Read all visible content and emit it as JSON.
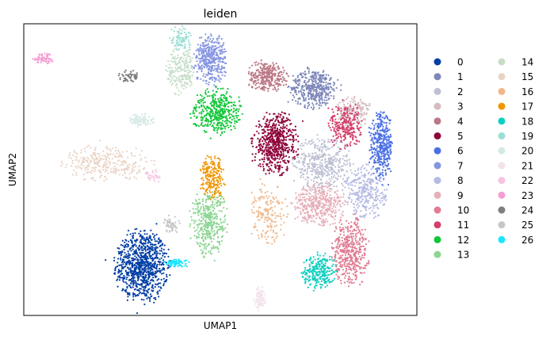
{
  "chart_data": {
    "type": "scatter",
    "title": "leiden",
    "xlabel": "UMAP1",
    "ylabel": "UMAP2",
    "xlim": [
      0,
      100
    ],
    "ylim": [
      0,
      100
    ],
    "grid": false,
    "ticks": false,
    "legend_position": "right",
    "legend": [
      {
        "label": "0",
        "color": "#023fa5"
      },
      {
        "label": "1",
        "color": "#7d87b9"
      },
      {
        "label": "2",
        "color": "#bec1d4"
      },
      {
        "label": "3",
        "color": "#d6bcc0"
      },
      {
        "label": "4",
        "color": "#bb7784"
      },
      {
        "label": "5",
        "color": "#8e063b"
      },
      {
        "label": "6",
        "color": "#4a6fe3"
      },
      {
        "label": "7",
        "color": "#8595e1"
      },
      {
        "label": "8",
        "color": "#b5bbe3"
      },
      {
        "label": "9",
        "color": "#e6afb9"
      },
      {
        "label": "10",
        "color": "#e07b91"
      },
      {
        "label": "11",
        "color": "#d33f6a"
      },
      {
        "label": "12",
        "color": "#11c638"
      },
      {
        "label": "13",
        "color": "#8dd593"
      },
      {
        "label": "14",
        "color": "#c6dec7"
      },
      {
        "label": "15",
        "color": "#ead3c6"
      },
      {
        "label": "16",
        "color": "#f0b98d"
      },
      {
        "label": "17",
        "color": "#ef9708"
      },
      {
        "label": "18",
        "color": "#0fcfc0"
      },
      {
        "label": "19",
        "color": "#9cded6"
      },
      {
        "label": "20",
        "color": "#d5eae7"
      },
      {
        "label": "21",
        "color": "#f3e1eb"
      },
      {
        "label": "22",
        "color": "#f6c4e1"
      },
      {
        "label": "23",
        "color": "#f79cd4"
      },
      {
        "label": "24",
        "color": "#7f7f7f"
      },
      {
        "label": "25",
        "color": "#c7c7c7"
      },
      {
        "label": "26",
        "color": "#1ce6ff"
      }
    ],
    "clusters": [
      {
        "label": "0",
        "cx": 30,
        "cy": 17,
        "rx": 6.5,
        "ry": 12,
        "n": 900
      },
      {
        "label": "1",
        "cx": 74,
        "cy": 78,
        "rx": 6,
        "ry": 6.5,
        "n": 420
      },
      {
        "label": "2",
        "cx": 76,
        "cy": 52,
        "rx": 7,
        "ry": 9,
        "n": 450
      },
      {
        "label": "3",
        "cx": 84,
        "cy": 70,
        "rx": 4,
        "ry": 5,
        "n": 180
      },
      {
        "label": "4",
        "cx": 62,
        "cy": 82,
        "rx": 5,
        "ry": 5,
        "n": 300
      },
      {
        "label": "5",
        "cx": 64,
        "cy": 59,
        "rx": 5.5,
        "ry": 10,
        "n": 600
      },
      {
        "label": "6",
        "cx": 91,
        "cy": 58,
        "rx": 3,
        "ry": 11,
        "n": 360
      },
      {
        "label": "7",
        "cx": 47.5,
        "cy": 88,
        "rx": 4,
        "ry": 8,
        "n": 380
      },
      {
        "label": "8",
        "cx": 87,
        "cy": 42,
        "rx": 5,
        "ry": 9,
        "n": 300
      },
      {
        "label": "9",
        "cx": 75,
        "cy": 38,
        "rx": 6.5,
        "ry": 7,
        "n": 400
      },
      {
        "label": "10",
        "cx": 83,
        "cy": 22,
        "rx": 4.5,
        "ry": 11,
        "n": 420
      },
      {
        "label": "11",
        "cx": 82,
        "cy": 65,
        "rx": 4,
        "ry": 8,
        "n": 250
      },
      {
        "label": "12",
        "cx": 49,
        "cy": 70,
        "rx": 6,
        "ry": 7.5,
        "n": 400
      },
      {
        "label": "13",
        "cx": 47,
        "cy": 32,
        "rx": 4.5,
        "ry": 11,
        "n": 400
      },
      {
        "label": "14",
        "cx": 40,
        "cy": 84,
        "rx": 3.5,
        "ry": 8,
        "n": 200
      },
      {
        "label": "15",
        "cx": 21,
        "cy": 52,
        "rx": 11,
        "ry": 6,
        "n": 300
      },
      {
        "label": "16",
        "cx": 62,
        "cy": 35,
        "rx": 4.5,
        "ry": 10,
        "n": 180
      },
      {
        "label": "17",
        "cx": 48,
        "cy": 47,
        "rx": 3,
        "ry": 7,
        "n": 220
      },
      {
        "label": "18",
        "cx": 75,
        "cy": 15,
        "rx": 4,
        "ry": 6,
        "n": 250
      },
      {
        "label": "19",
        "cx": 40,
        "cy": 95,
        "rx": 2.5,
        "ry": 4.5,
        "n": 90
      },
      {
        "label": "20",
        "cx": 30,
        "cy": 67,
        "rx": 3,
        "ry": 2,
        "n": 90
      },
      {
        "label": "21",
        "cx": 60,
        "cy": 6,
        "rx": 1.5,
        "ry": 4,
        "n": 80
      },
      {
        "label": "22",
        "cx": 33,
        "cy": 48,
        "rx": 2,
        "ry": 2,
        "n": 30
      },
      {
        "label": "23",
        "cx": 5,
        "cy": 88,
        "rx": 2.5,
        "ry": 2,
        "n": 70
      },
      {
        "label": "24",
        "cx": 27,
        "cy": 82,
        "rx": 3,
        "ry": 2,
        "n": 60
      },
      {
        "label": "25",
        "cx": 37.5,
        "cy": 31,
        "rx": 2,
        "ry": 3,
        "n": 60
      },
      {
        "label": "26",
        "cx": 39,
        "cy": 18,
        "rx": 3,
        "ry": 1.3,
        "n": 70
      }
    ]
  }
}
